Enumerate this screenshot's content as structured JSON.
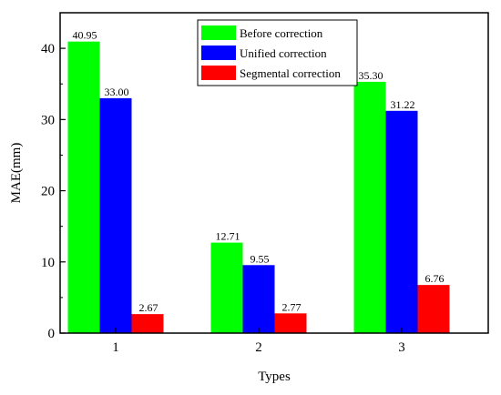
{
  "chart_data": {
    "type": "bar",
    "categories": [
      "1",
      "2",
      "3"
    ],
    "series": [
      {
        "name": "Before correction",
        "values": [
          40.95,
          12.71,
          35.3
        ],
        "labels": [
          "40.95",
          "12.71",
          "35.30"
        ],
        "color": "#00ff00"
      },
      {
        "name": "Unified correction",
        "values": [
          33.0,
          9.55,
          31.22
        ],
        "labels": [
          "33.00",
          "9.55",
          "31.22"
        ],
        "color": "#0000ff"
      },
      {
        "name": "Segmental correction",
        "values": [
          2.67,
          2.77,
          6.76
        ],
        "labels": [
          "2.67",
          "2.77",
          "6.76"
        ],
        "color": "#ff0000"
      }
    ],
    "xlabel": "Types",
    "ylabel": "MAE(mm)",
    "ylim": [
      0,
      45
    ],
    "yticks": [
      0,
      10,
      20,
      30,
      40
    ],
    "grid": false,
    "legend_position": "top-center"
  }
}
